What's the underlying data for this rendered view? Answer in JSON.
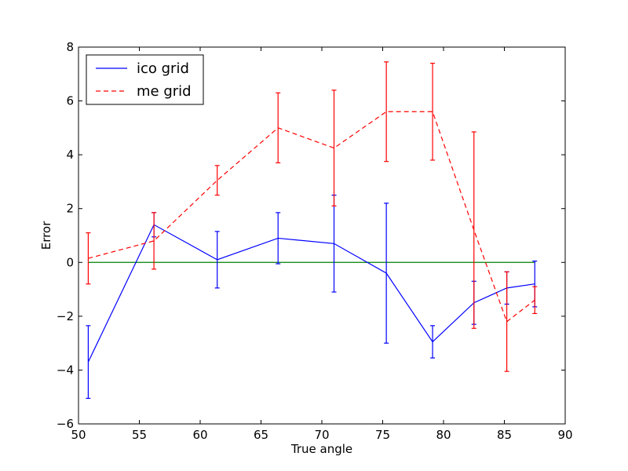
{
  "chart_data": {
    "type": "line",
    "xlabel": "True angle",
    "ylabel": "Error",
    "xlim": [
      50,
      90
    ],
    "ylim": [
      -6,
      8
    ],
    "xticks": [
      "50",
      "55",
      "60",
      "65",
      "70",
      "75",
      "80",
      "85",
      "90"
    ],
    "yticks": [
      "−6",
      "−4",
      "−2",
      "0",
      "2",
      "4",
      "6",
      "8"
    ],
    "grid": false,
    "legend_position": "top-left",
    "reference_line": {
      "y": 0,
      "x_range": [
        50.8,
        87.5
      ],
      "color": "#008000"
    },
    "series": [
      {
        "name": "ico grid",
        "color": "#0000ff",
        "style": "solid",
        "x": [
          50.8,
          56.2,
          61.4,
          66.4,
          71.0,
          75.3,
          79.1,
          82.5,
          85.2,
          87.5
        ],
        "y": [
          -3.7,
          1.4,
          0.1,
          0.9,
          0.7,
          -0.4,
          -2.95,
          -1.5,
          -0.95,
          -0.8
        ],
        "err": [
          1.35,
          0.45,
          1.05,
          0.95,
          1.8,
          2.6,
          0.6,
          0.8,
          0.6,
          0.85
        ]
      },
      {
        "name": "me grid",
        "color": "#ff0000",
        "style": "dashed",
        "x": [
          50.8,
          56.2,
          61.4,
          66.4,
          71.0,
          75.3,
          79.1,
          82.5,
          85.2,
          87.5
        ],
        "y": [
          0.15,
          0.8,
          3.05,
          5.0,
          4.25,
          5.6,
          5.6,
          1.2,
          -2.2,
          -1.4
        ],
        "err": [
          0.95,
          1.05,
          0.55,
          1.3,
          2.15,
          1.85,
          1.8,
          3.65,
          1.85,
          0.5
        ]
      }
    ]
  }
}
